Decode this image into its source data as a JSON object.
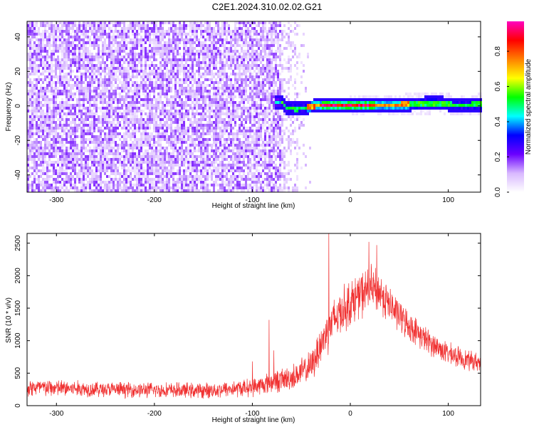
{
  "figure": {
    "title": "C2E1.2024.310.02.02.G21"
  },
  "chart_data": [
    {
      "type": "heatmap",
      "xlabel": "Height of straight line (km)",
      "ylabel": "Frequency (Hz)",
      "xlim": [
        -330,
        133
      ],
      "ylim": [
        -50,
        49
      ],
      "xticks": [
        -300,
        -200,
        -100,
        0,
        100
      ],
      "yticks": [
        -40,
        -20,
        0,
        20,
        40
      ],
      "colorbar": {
        "label": "Normalized spectral amplitude",
        "range": [
          0,
          0.97
        ],
        "ticks": [
          0,
          0.2,
          0.4,
          0.6,
          0.8
        ],
        "colormap": [
          "#ffffff",
          "#d8b8ff",
          "#6a00ff",
          "#0000ff",
          "#00ffff",
          "#00ff00",
          "#ffff00",
          "#ff8000",
          "#ff0000",
          "#ff00c0"
        ]
      },
      "features": {
        "noise_region_x": [
          -330,
          -70
        ],
        "fade_region_x": [
          -70,
          -40
        ],
        "signal_band_center_hz": [
          [
            -75,
            2
          ],
          [
            -70,
            2
          ],
          [
            -65,
            -1
          ],
          [
            -55,
            -2
          ],
          [
            -45,
            -1
          ],
          [
            -35,
            0
          ],
          [
            0,
            0
          ],
          [
            20,
            0
          ],
          [
            40,
            0.5
          ],
          [
            60,
            1
          ],
          [
            90,
            1.5
          ],
          [
            110,
            0.5
          ],
          [
            133,
            1
          ]
        ],
        "peak_amplitude_region_x": [
          -30,
          25
        ]
      },
      "grid": false
    },
    {
      "type": "line",
      "xlabel": "Height of straight line (km)",
      "ylabel": "SNR (10 * v/v)",
      "xlim": [
        -330,
        133
      ],
      "ylim": [
        0,
        2650
      ],
      "xticks": [
        -300,
        -200,
        -100,
        0,
        100
      ],
      "yticks": [
        0,
        500,
        1000,
        1500,
        2000,
        2500
      ],
      "series": [
        {
          "color": "#f03030",
          "envelope": [
            {
              "x": -330,
              "mean": 280,
              "spread": 170
            },
            {
              "x": -250,
              "mean": 250,
              "spread": 140
            },
            {
              "x": -150,
              "mean": 230,
              "spread": 140
            },
            {
              "x": -100,
              "mean": 280,
              "spread": 160
            },
            {
              "x": -80,
              "mean": 360,
              "spread": 200
            },
            {
              "x": -60,
              "mean": 430,
              "spread": 230
            },
            {
              "x": -40,
              "mean": 600,
              "spread": 280
            },
            {
              "x": -30,
              "mean": 950,
              "spread": 380
            },
            {
              "x": -20,
              "mean": 1250,
              "spread": 420
            },
            {
              "x": -10,
              "mean": 1450,
              "spread": 430
            },
            {
              "x": 0,
              "mean": 1580,
              "spread": 420
            },
            {
              "x": 10,
              "mean": 1700,
              "spread": 420
            },
            {
              "x": 20,
              "mean": 1800,
              "spread": 420
            },
            {
              "x": 30,
              "mean": 1750,
              "spread": 400
            },
            {
              "x": 40,
              "mean": 1550,
              "spread": 330
            },
            {
              "x": 50,
              "mean": 1380,
              "spread": 300
            },
            {
              "x": 60,
              "mean": 1230,
              "spread": 260
            },
            {
              "x": 80,
              "mean": 980,
              "spread": 230
            },
            {
              "x": 100,
              "mean": 800,
              "spread": 200
            },
            {
              "x": 120,
              "mean": 700,
              "spread": 180
            },
            {
              "x": 133,
              "mean": 660,
              "spread": 170
            }
          ],
          "spikes": [
            {
              "x": -22,
              "y": 2650
            },
            {
              "x": 19,
              "y": 2520
            },
            {
              "x": 27,
              "y": 2470
            },
            {
              "x": -83,
              "y": 1320
            },
            {
              "x": -78,
              "y": 850
            },
            {
              "x": -100,
              "y": 680
            }
          ]
        }
      ],
      "grid": false
    }
  ]
}
